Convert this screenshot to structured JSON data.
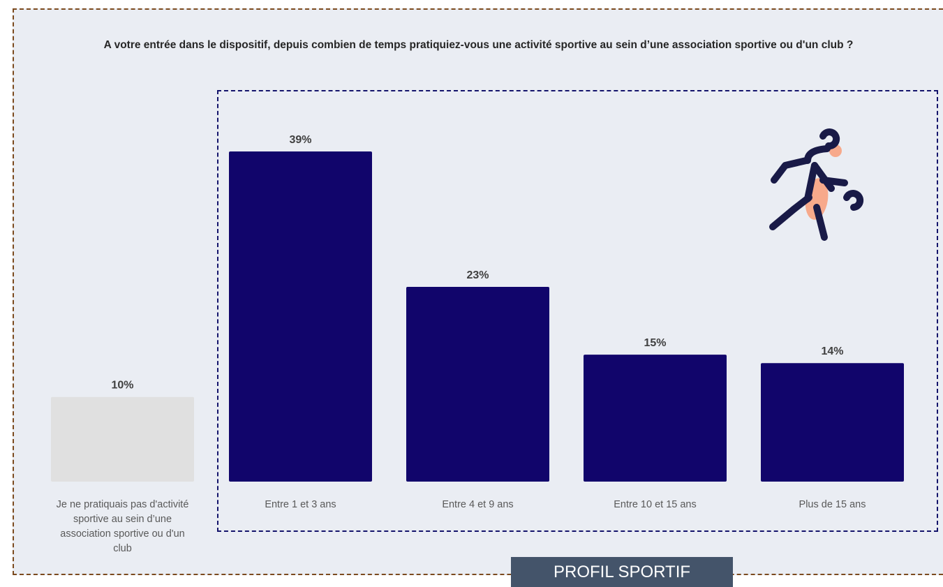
{
  "title": "A votre entrée dans le dispositif, depuis combien de temps pratiquiez-vous une activité sportive au sein d’une association sportive ou d'un club ?",
  "footer_label": "PROFIL SPORTIF",
  "icon": "athlete-icon",
  "colors": {
    "primary_bar": "#11056b",
    "muted_bar": "#e0e0e0",
    "accent": "#f7a98b",
    "footer_bg": "#44546a"
  },
  "chart_data": {
    "type": "bar",
    "categories": [
      "Je ne pratiquais pas d'activité sportive au sein d’une association sportive ou d'un club",
      "Entre 1 et 3 ans",
      "Entre 4 et 9 ans",
      "Entre 10 et 15 ans",
      "Plus de 15 ans"
    ],
    "category_lines": [
      [
        "Je ne pratiquais pas d'activité",
        "sportive au sein d’une",
        "association sportive ou d'un",
        "club"
      ],
      [
        "Entre 1 et 3 ans"
      ],
      [
        "Entre 4 et 9 ans"
      ],
      [
        "Entre 10 et 15 ans"
      ],
      [
        "Plus de 15 ans"
      ]
    ],
    "values": [
      10,
      39,
      23,
      15,
      14
    ],
    "value_labels": [
      "10%",
      "39%",
      "23%",
      "15%",
      "14%"
    ],
    "highlighted": [
      false,
      true,
      true,
      true,
      true
    ],
    "ylim": [
      0,
      39
    ],
    "grid": false,
    "legend": "none"
  }
}
